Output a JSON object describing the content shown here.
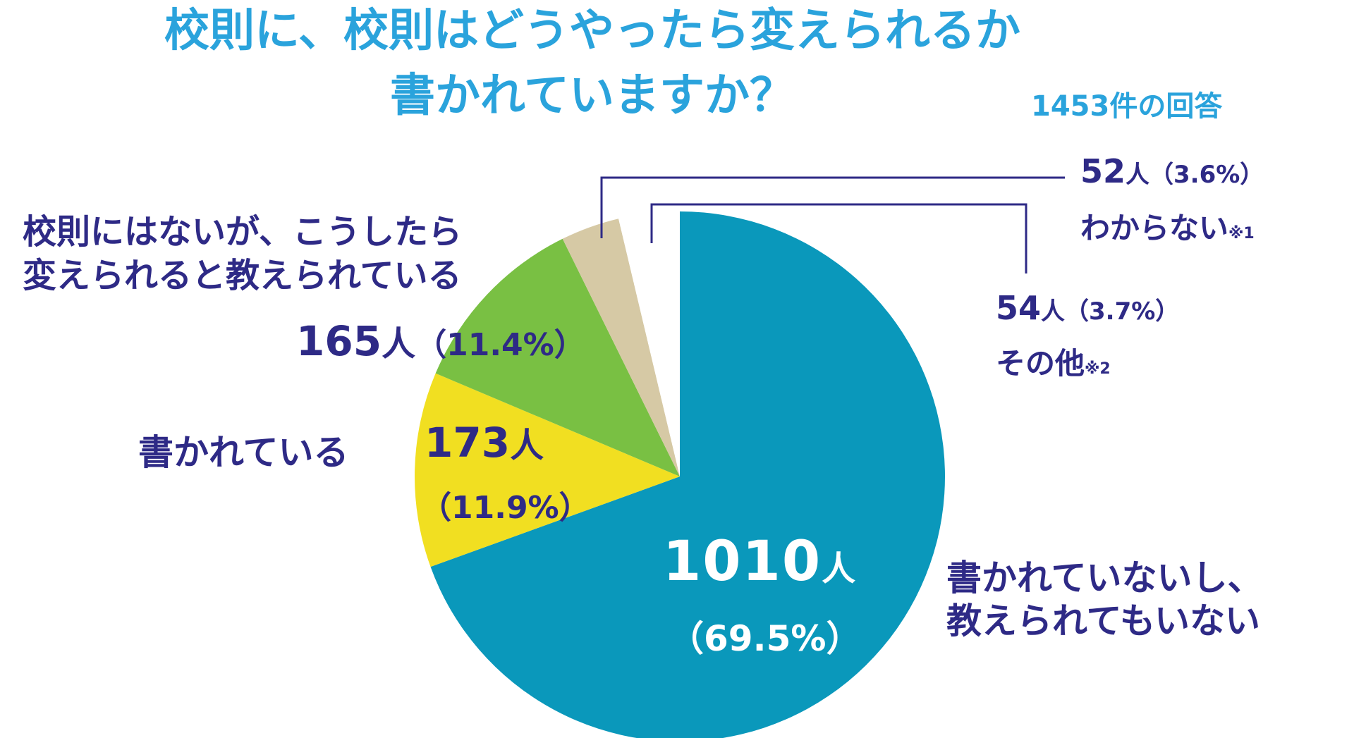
{
  "title": {
    "line1": "校則に、校則はどうやったら変えられるか",
    "line2": "書かれていますか？",
    "responses": "1453件の回答"
  },
  "colors": {
    "not_written": "#0a98bb",
    "written": "#f1df21",
    "taught": "#79c043",
    "unknown": "#d6c9a5",
    "other": "#ffffff",
    "label_text": "#2e2a86",
    "title_text": "#2aa3dc",
    "leader_line": "#2e2a86"
  },
  "chart_data": {
    "type": "pie",
    "total": 1453,
    "slices": [
      {
        "label_line1": "書かれていないし、",
        "label_line2": "教えられてもいない",
        "value": 1010,
        "unit": "人",
        "percent": "（69.5%）",
        "color_key": "not_written"
      },
      {
        "label_line1": "書かれている",
        "label_line2": "",
        "value": 173,
        "unit": "人",
        "percent": "（11.9%）",
        "color_key": "written"
      },
      {
        "label_line1": "校則にはないが、こうしたら",
        "label_line2": "変えられると教えられている",
        "value": 165,
        "unit": "人",
        "percent": "（11.4%）",
        "color_key": "taught"
      },
      {
        "label_line1": "わからない",
        "label_line2": "",
        "note": "※1",
        "value": 52,
        "unit": "人",
        "percent": "（3.6%）",
        "color_key": "unknown"
      },
      {
        "label_line1": "その他",
        "label_line2": "",
        "note": "※2",
        "value": 54,
        "unit": "人",
        "percent": "（3.7%）",
        "color_key": "other"
      }
    ]
  }
}
